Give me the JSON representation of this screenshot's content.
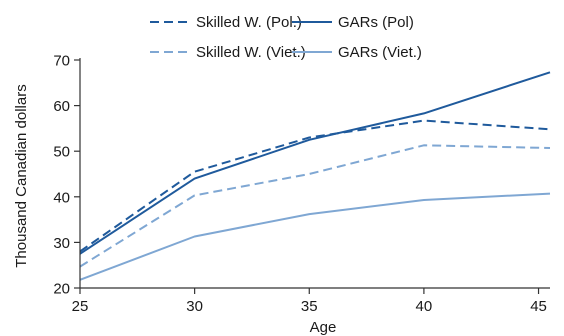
{
  "chart_data": {
    "type": "line",
    "xlabel": "Age",
    "ylabel": "Thousand Canadian dollars",
    "xlim": [
      25,
      45.5
    ],
    "ylim": [
      20,
      70
    ],
    "xticks": [
      25,
      30,
      35,
      40,
      45
    ],
    "yticks": [
      20,
      30,
      40,
      50,
      60,
      70
    ],
    "grid": false,
    "legend_position": "top",
    "series": [
      {
        "name": "Skilled W. (Pol.)",
        "color": "#1f5a9c",
        "dash": "dashed",
        "x": [
          25,
          30,
          35,
          40,
          45.5
        ],
        "y": [
          28.0,
          45.5,
          53.0,
          56.7,
          54.8
        ]
      },
      {
        "name": "GARs (Pol)",
        "color": "#1f5a9c",
        "dash": "solid",
        "x": [
          25,
          30,
          35,
          40,
          45.5
        ],
        "y": [
          27.5,
          44.0,
          52.5,
          58.3,
          67.3
        ]
      },
      {
        "name": "Skilled W. (Viet.)",
        "color": "#7fa7d3",
        "dash": "dashed",
        "x": [
          25,
          30,
          35,
          40,
          45.5
        ],
        "y": [
          24.7,
          40.3,
          45.0,
          51.3,
          50.7
        ]
      },
      {
        "name": "GARs (Viet.)",
        "color": "#7fa7d3",
        "dash": "solid",
        "x": [
          25,
          30,
          35,
          40,
          45.5
        ],
        "y": [
          21.8,
          31.3,
          36.2,
          39.3,
          40.7
        ]
      }
    ]
  }
}
